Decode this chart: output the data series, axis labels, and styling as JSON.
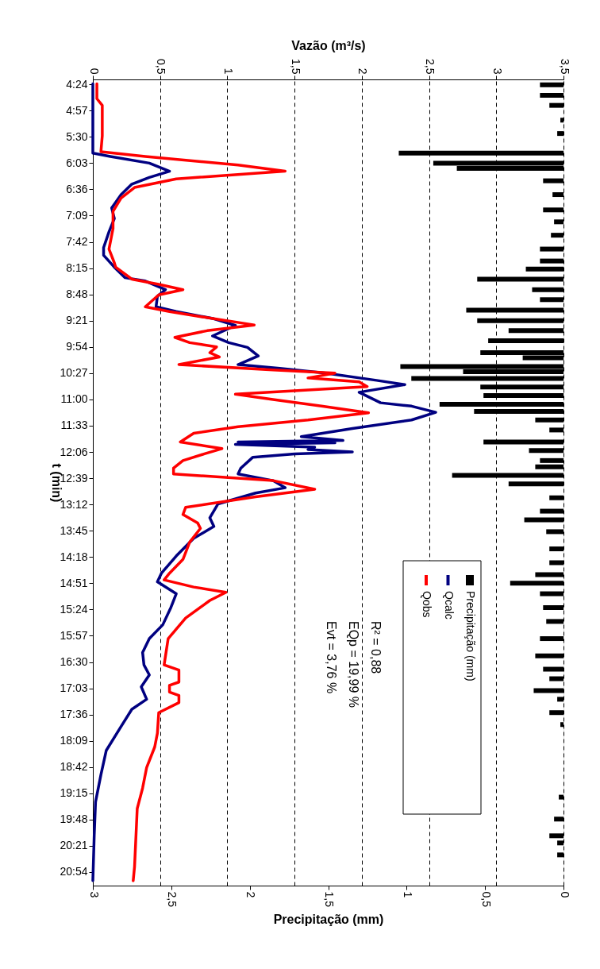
{
  "chart_data": {
    "type": "line",
    "orientation": "horizontal",
    "xlabel": "Precipitação (mm)",
    "x2label": "Vazão (m³/s)",
    "ylabel": "t (min)",
    "xlim": [
      3,
      0
    ],
    "xticks": [
      {
        "value": 3,
        "label": "3"
      },
      {
        "value": 2.5,
        "label": "2,5"
      },
      {
        "value": 2,
        "label": "2"
      },
      {
        "value": 1.5,
        "label": "1,5"
      },
      {
        "value": 1,
        "label": "1"
      },
      {
        "value": 0.5,
        "label": "0,5"
      },
      {
        "value": 0,
        "label": "0"
      }
    ],
    "x2lim": [
      0,
      3.5
    ],
    "x2ticks": [
      {
        "value": 0,
        "label": "0"
      },
      {
        "value": 0.5,
        "label": "0,5"
      },
      {
        "value": 1,
        "label": "1"
      },
      {
        "value": 1.5,
        "label": "1,5"
      },
      {
        "value": 2,
        "label": "2"
      },
      {
        "value": 2.5,
        "label": "2,5"
      },
      {
        "value": 3,
        "label": "3"
      },
      {
        "value": 3.5,
        "label": "3,5"
      }
    ],
    "ylim": [
      21.1,
      4.38
    ],
    "yticks": [
      {
        "value": 4.4,
        "label": "4:24"
      },
      {
        "value": 4.95,
        "label": "4:57"
      },
      {
        "value": 5.5,
        "label": "5:30"
      },
      {
        "value": 6.05,
        "label": "6:03"
      },
      {
        "value": 6.6,
        "label": "6:36"
      },
      {
        "value": 7.15,
        "label": "7:09"
      },
      {
        "value": 7.7,
        "label": "7:42"
      },
      {
        "value": 8.25,
        "label": "8:15"
      },
      {
        "value": 8.8,
        "label": "8:48"
      },
      {
        "value": 9.35,
        "label": "9:21"
      },
      {
        "value": 9.9,
        "label": "9:54"
      },
      {
        "value": 10.45,
        "label": "10:27"
      },
      {
        "value": 11,
        "label": "11:00"
      },
      {
        "value": 11.55,
        "label": "11:33"
      },
      {
        "value": 12.1,
        "label": "12:06"
      },
      {
        "value": 12.65,
        "label": "12:39"
      },
      {
        "value": 13.2,
        "label": "13:12"
      },
      {
        "value": 13.75,
        "label": "13:45"
      },
      {
        "value": 14.3,
        "label": "14:18"
      },
      {
        "value": 14.85,
        "label": "14:51"
      },
      {
        "value": 15.4,
        "label": "15:24"
      },
      {
        "value": 15.95,
        "label": "15:57"
      },
      {
        "value": 16.5,
        "label": "16:30"
      },
      {
        "value": 17.05,
        "label": "17:03"
      },
      {
        "value": 17.6,
        "label": "17:36"
      },
      {
        "value": 18.15,
        "label": "18:09"
      },
      {
        "value": 18.7,
        "label": "18:42"
      },
      {
        "value": 19.25,
        "label": "19:15"
      },
      {
        "value": 19.8,
        "label": "19:48"
      },
      {
        "value": 20.35,
        "label": "20:21"
      },
      {
        "value": 20.9,
        "label": "20:54"
      }
    ],
    "grid": "x",
    "legend": "right",
    "annotations": [
      "R² = 0,88",
      "EQp = 19,99 %",
      "Evt = 3,76 %"
    ],
    "series": [
      {
        "name": "Precipitação (mm)",
        "type": "bar",
        "color": "#000000",
        "x": [
          4.41,
          4.63,
          4.84,
          5.15,
          5.43,
          5.84,
          6.05,
          6.16,
          6.42,
          6.71,
          7.03,
          7.28,
          7.56,
          7.85,
          8.1,
          8.27,
          8.48,
          8.7,
          8.91,
          9.13,
          9.35,
          9.56,
          9.77,
          10.02,
          10.13,
          10.31,
          10.42,
          10.56,
          10.74,
          10.92,
          11.1,
          11.25,
          11.43,
          11.64,
          11.89,
          12.07,
          12.28,
          12.41,
          12.59,
          12.77,
          13.06,
          13.34,
          13.52,
          13.77,
          14.13,
          14.42,
          14.67,
          14.85,
          15.07,
          15.36,
          15.65,
          16.01,
          16.37,
          16.65,
          16.85,
          17.1,
          17.28,
          17.56,
          17.81,
          19.33,
          19.79,
          20.14,
          20.29,
          20.54
        ],
        "values": [
          0.15,
          0.15,
          0.09,
          0.02,
          0.04,
          1.05,
          0.83,
          0.68,
          0.13,
          0.07,
          0.13,
          0.06,
          0.08,
          0.15,
          0.15,
          0.24,
          0.55,
          0.2,
          0.15,
          0.62,
          0.55,
          0.35,
          0.48,
          0.53,
          0.26,
          1.04,
          0.64,
          0.97,
          0.53,
          0.51,
          0.79,
          0.57,
          0.18,
          0.09,
          0.51,
          0.22,
          0.15,
          0.18,
          0.71,
          0.35,
          0.09,
          0.15,
          0.25,
          0.11,
          0.09,
          0.09,
          0.18,
          0.34,
          0.15,
          0.13,
          0.11,
          0.15,
          0.18,
          0.13,
          0.09,
          0.19,
          0.04,
          0.09,
          0.02,
          0.03,
          0.06,
          0.09,
          0.04,
          0.04
        ]
      },
      {
        "name": "Qcalc",
        "color": "#000080",
        "axis": "x2",
        "x": [
          4.39,
          5.84,
          5.91,
          6.05,
          6.22,
          6.35,
          6.49,
          6.71,
          6.99,
          7.21,
          7.49,
          7.82,
          7.98,
          8.23,
          8.45,
          8.52,
          8.7,
          8.84,
          9.06,
          9.16,
          9.31,
          9.45,
          9.67,
          9.81,
          9.91,
          10.09,
          10.27,
          10.35,
          10.45,
          10.6,
          10.69,
          10.85,
          11.07,
          11.14,
          11.27,
          11.43,
          11.61,
          11.78,
          11.86,
          11.89,
          11.91,
          11.94,
          12.0,
          12.05,
          12.1,
          12.14,
          12.21,
          12.44,
          12.56,
          12.7,
          12.85,
          12.96,
          13.19,
          13.48,
          13.66,
          13.91,
          14.28,
          14.64,
          14.82,
          15.07,
          15.36,
          15.72,
          16.01,
          16.3,
          16.56,
          16.77,
          17.02,
          17.28,
          17.49,
          17.85,
          18.35,
          18.86,
          19.43,
          20.14,
          21.08
        ],
        "values": [
          0,
          0,
          0.13,
          0.42,
          0.57,
          0.42,
          0.29,
          0.21,
          0.14,
          0.16,
          0.12,
          0.08,
          0.08,
          0.16,
          0.24,
          0.39,
          0.54,
          0.48,
          0.47,
          0.62,
          0.9,
          1.06,
          0.89,
          1.01,
          1.15,
          1.23,
          1.08,
          1.39,
          1.73,
          2.11,
          2.32,
          1.98,
          2.14,
          2.37,
          2.55,
          2.37,
          1.93,
          1.55,
          1.86,
          1.08,
          1.8,
          1.06,
          1.65,
          1.6,
          1.93,
          1.5,
          1.19,
          1.1,
          1.08,
          1.34,
          1.43,
          1.21,
          0.93,
          0.87,
          0.9,
          0.75,
          0.62,
          0.51,
          0.48,
          0.62,
          0.58,
          0.52,
          0.42,
          0.37,
          0.38,
          0.42,
          0.36,
          0.4,
          0.29,
          0.21,
          0.1,
          0.06,
          0.02,
          0.01,
          0
        ]
      },
      {
        "name": "Qobs",
        "color": "#ff0000",
        "axis": "x2",
        "x": [
          4.39,
          4.7,
          4.84,
          5.48,
          5.81,
          5.91,
          6.09,
          6.22,
          6.38,
          6.56,
          6.78,
          7.06,
          7.42,
          7.85,
          8.14,
          8.23,
          8.48,
          8.59,
          8.7,
          8.81,
          9.06,
          9.16,
          9.31,
          9.44,
          9.56,
          9.7,
          9.81,
          9.9,
          10.02,
          10.11,
          10.27,
          10.38,
          10.45,
          10.55,
          10.63,
          10.73,
          10.89,
          11.0,
          11.14,
          11.28,
          11.43,
          11.57,
          11.71,
          11.89,
          12.03,
          12.14,
          12.28,
          12.44,
          12.56,
          12.7,
          12.88,
          13.04,
          13.26,
          13.41,
          13.59,
          13.7,
          13.99,
          14.35,
          14.64,
          14.78,
          14.93,
          15.04,
          15.21,
          15.58,
          16.01,
          16.56,
          16.67,
          16.92,
          16.99,
          17.13,
          17.2,
          17.35,
          17.56,
          17.99,
          18.28,
          18.71,
          19.14,
          19.57,
          20.79,
          21.08
        ],
        "values": [
          0.03,
          0.03,
          0.07,
          0.07,
          0.06,
          0.39,
          1.08,
          1.43,
          0.62,
          0.31,
          0.21,
          0.15,
          0.15,
          0.12,
          0.16,
          0.17,
          0.29,
          0.49,
          0.67,
          0.49,
          0.39,
          0.57,
          0.9,
          1.2,
          0.85,
          0.61,
          0.72,
          0.92,
          0.87,
          0.94,
          0.64,
          1.34,
          1.8,
          1.6,
          1.98,
          2.04,
          1.06,
          1.34,
          1.7,
          2.05,
          1.6,
          1.08,
          0.75,
          0.65,
          0.96,
          0.83,
          0.67,
          0.6,
          0.6,
          1.34,
          1.65,
          1.21,
          0.69,
          0.67,
          0.78,
          0.8,
          0.72,
          0.67,
          0.57,
          0.53,
          0.75,
          0.99,
          0.87,
          0.69,
          0.56,
          0.53,
          0.64,
          0.64,
          0.57,
          0.57,
          0.64,
          0.64,
          0.49,
          0.48,
          0.46,
          0.4,
          0.37,
          0.33,
          0.31,
          0.3
        ]
      }
    ]
  }
}
